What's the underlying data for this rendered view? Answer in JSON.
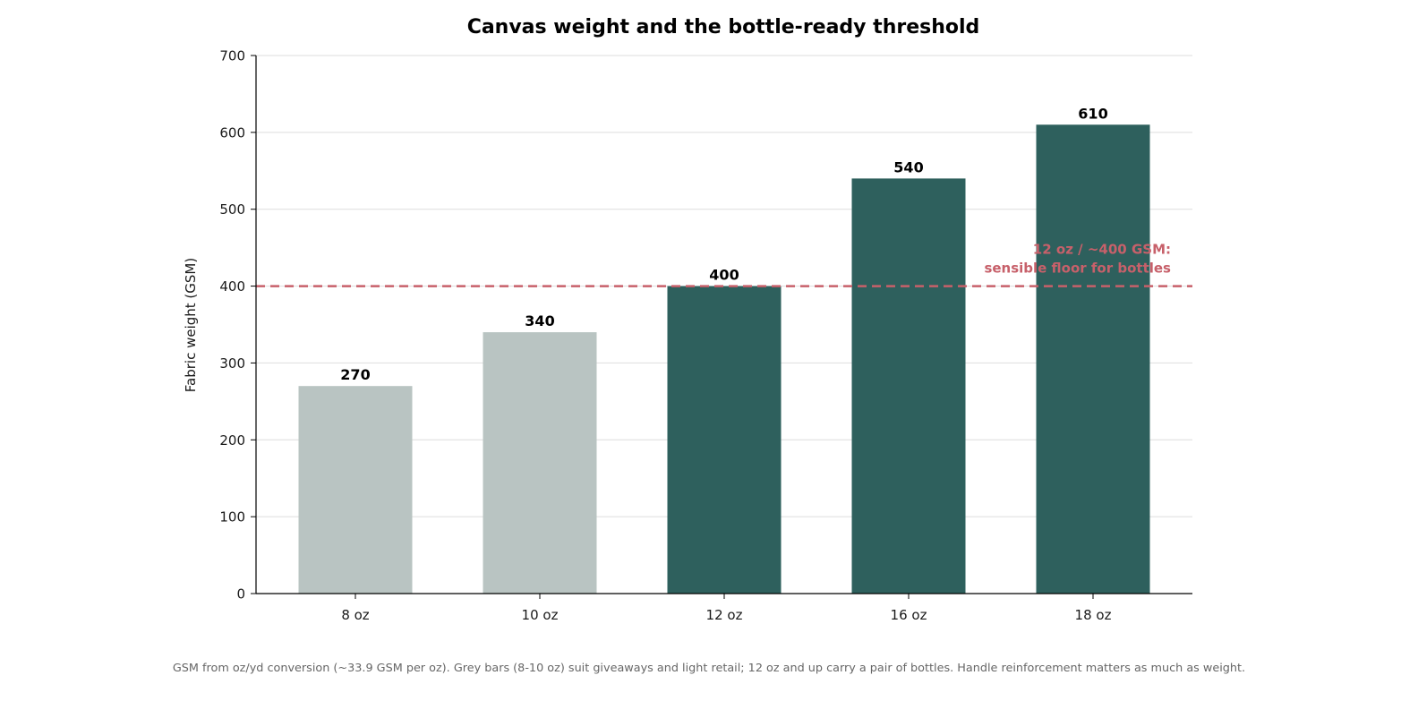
{
  "chart_data": {
    "type": "bar",
    "title": "Canvas weight and the bottle-ready threshold",
    "xlabel": "",
    "ylabel": "Fabric weight (GSM)",
    "categories": [
      "8 oz",
      "10 oz",
      "12 oz",
      "16 oz",
      "18 oz"
    ],
    "values": [
      270,
      340,
      400,
      540,
      610
    ],
    "data_labels": [
      "270",
      "340",
      "400",
      "540",
      "610"
    ],
    "bar_groups": [
      "light",
      "light",
      "heavy",
      "heavy",
      "heavy"
    ],
    "ylim": [
      0,
      700
    ],
    "yticks": [
      0,
      100,
      200,
      300,
      400,
      500,
      600,
      700
    ],
    "grid": "horizontal",
    "threshold": {
      "value": 400,
      "style": "dashed",
      "label_line1": "12 oz / ~400 GSM:",
      "label_line2": "sensible floor for bottles"
    },
    "colors": {
      "light_bar": "#b9c4c2",
      "heavy_bar": "#2e605d",
      "threshold": "#c7606a",
      "grid": "#dddddd",
      "axis": "#000000"
    }
  },
  "footnote": "GSM from oz/yd conversion (~33.9 GSM per oz). Grey bars (8-10 oz) suit giveaways and light retail; 12 oz and up carry a pair of bottles. Handle reinforcement matters as much as weight."
}
